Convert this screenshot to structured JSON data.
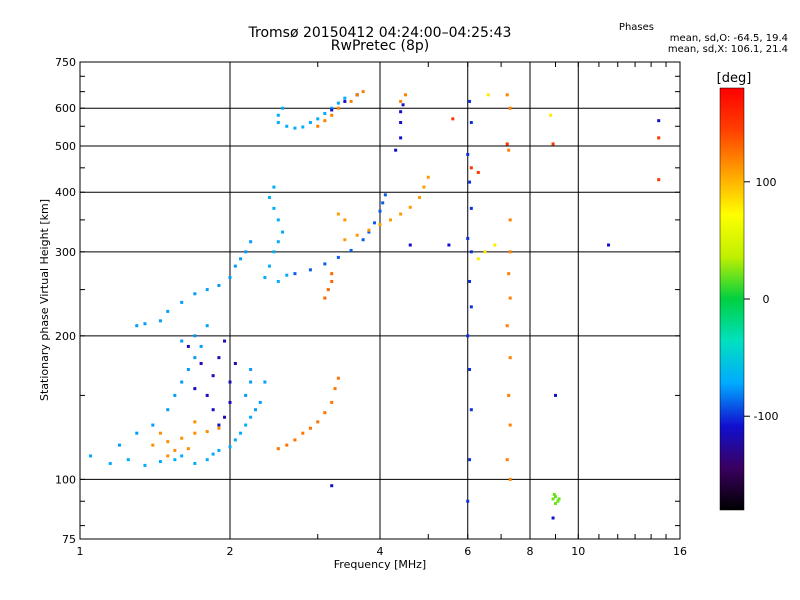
{
  "header": {
    "title_line1": "Tromsø 20150412 04:24:00–04:25:43",
    "title_line2": "RwPretec (8p)",
    "phases_title": "Phases",
    "phases_line1": "mean, sd,O: -64.5, 19.4",
    "phases_line2": "mean, sd,X: 106.1, 21.4"
  },
  "colorbar": {
    "label": "deg",
    "ticks": [
      {
        "v": 100,
        "t": "100"
      },
      {
        "v": 0,
        "t": "0"
      },
      {
        "v": -100,
        "t": "-100"
      }
    ],
    "range": [
      -180,
      180
    ],
    "stops": [
      "#000000",
      "#3a0060",
      "#1010d0",
      "#00aaff",
      "#00e0c0",
      "#00d040",
      "#c0f000",
      "#ffff00",
      "#ffa000",
      "#ff4000",
      "#ff0000"
    ]
  },
  "chart_data": {
    "type": "scatter",
    "title": "Tromsø 20150412 04:24:00–04:25:43 RwPretec (8p)",
    "xlabel": "Frequency [MHz]",
    "ylabel": "Stationary phase Virtual Height [km]",
    "xscale": "log",
    "yscale": "log",
    "xlim": [
      1,
      16
    ],
    "ylim": [
      75,
      750
    ],
    "xticks": [
      {
        "v": 1,
        "t": "1"
      },
      {
        "v": 2,
        "t": "2"
      },
      {
        "v": 4,
        "t": "4"
      },
      {
        "v": 6,
        "t": "6"
      },
      {
        "v": 8,
        "t": "8"
      },
      {
        "v": 10,
        "t": "10"
      },
      {
        "v": 16,
        "t": "16"
      }
    ],
    "yticks": [
      {
        "v": 75,
        "t": "75"
      },
      {
        "v": 100,
        "t": "100"
      },
      {
        "v": 200,
        "t": "200"
      },
      {
        "v": 300,
        "t": "300"
      },
      {
        "v": 400,
        "t": "400"
      },
      {
        "v": 500,
        "t": "500"
      },
      {
        "v": 600,
        "t": "600"
      },
      {
        "v": 750,
        "t": "750"
      }
    ],
    "grid_x": [
      2,
      4,
      6,
      8,
      10
    ],
    "grid_y": [
      100,
      200,
      300,
      400,
      500,
      600
    ],
    "color_by": "phase_deg",
    "point_groups": [
      {
        "name": "E-layer O-mode",
        "phase": -70,
        "points": [
          [
            1.05,
            112
          ],
          [
            1.15,
            108
          ],
          [
            1.25,
            110
          ],
          [
            1.35,
            107
          ],
          [
            1.45,
            109
          ],
          [
            1.55,
            110
          ],
          [
            1.6,
            112
          ],
          [
            1.7,
            108
          ],
          [
            1.8,
            110
          ],
          [
            1.85,
            113
          ],
          [
            1.9,
            115
          ],
          [
            2.0,
            117
          ],
          [
            2.05,
            121
          ],
          [
            2.1,
            125
          ],
          [
            2.15,
            130
          ],
          [
            2.2,
            135
          ]
        ]
      },
      {
        "name": "E-layer scatter cyan",
        "phase": -75,
        "points": [
          [
            1.2,
            118
          ],
          [
            1.3,
            125
          ],
          [
            1.4,
            130
          ],
          [
            1.5,
            140
          ],
          [
            1.55,
            150
          ],
          [
            1.6,
            160
          ],
          [
            1.65,
            170
          ],
          [
            1.7,
            180
          ],
          [
            1.75,
            190
          ],
          [
            1.6,
            195
          ],
          [
            1.7,
            200
          ],
          [
            1.8,
            210
          ],
          [
            1.5,
            225
          ],
          [
            1.45,
            215
          ],
          [
            1.6,
            235
          ],
          [
            1.7,
            245
          ],
          [
            1.8,
            250
          ],
          [
            1.9,
            255
          ],
          [
            2.0,
            265
          ],
          [
            2.05,
            280
          ],
          [
            2.1,
            290
          ],
          [
            2.15,
            300
          ],
          [
            2.2,
            315
          ],
          [
            2.2,
            170
          ],
          [
            2.2,
            160
          ],
          [
            2.15,
            150
          ],
          [
            2.25,
            140
          ],
          [
            2.3,
            145
          ],
          [
            2.35,
            160
          ],
          [
            1.3,
            210
          ],
          [
            1.35,
            212
          ]
        ]
      },
      {
        "name": "E-layer scatter blue",
        "phase": -115,
        "points": [
          [
            1.65,
            190
          ],
          [
            1.75,
            175
          ],
          [
            1.85,
            165
          ],
          [
            1.9,
            180
          ],
          [
            1.95,
            195
          ],
          [
            2.0,
            160
          ],
          [
            1.8,
            150
          ],
          [
            1.85,
            140
          ],
          [
            1.9,
            130
          ],
          [
            1.7,
            155
          ],
          [
            2.0,
            145
          ],
          [
            1.95,
            135
          ],
          [
            2.05,
            175
          ]
        ]
      },
      {
        "name": "E-layer X-mode",
        "phase": 115,
        "points": [
          [
            1.4,
            118
          ],
          [
            1.5,
            120
          ],
          [
            1.6,
            122
          ],
          [
            1.7,
            125
          ],
          [
            1.8,
            126
          ],
          [
            1.9,
            128
          ],
          [
            1.5,
            112
          ],
          [
            1.55,
            115
          ],
          [
            1.65,
            116
          ],
          [
            1.45,
            125
          ],
          [
            1.7,
            132
          ]
        ]
      },
      {
        "name": "Es X-mode trace",
        "phase": 125,
        "points": [
          [
            2.5,
            116
          ],
          [
            2.6,
            118
          ],
          [
            2.7,
            121
          ],
          [
            2.8,
            125
          ],
          [
            2.9,
            128
          ],
          [
            3.0,
            132
          ],
          [
            3.1,
            138
          ],
          [
            3.2,
            145
          ],
          [
            3.25,
            155
          ],
          [
            3.3,
            163
          ]
        ]
      },
      {
        "name": "F2 O-mode trace",
        "phase": -90,
        "points": [
          [
            2.7,
            270
          ],
          [
            2.9,
            275
          ],
          [
            3.1,
            283
          ],
          [
            3.3,
            292
          ],
          [
            3.5,
            302
          ],
          [
            3.7,
            318
          ],
          [
            3.8,
            330
          ],
          [
            3.9,
            345
          ],
          [
            4.0,
            365
          ],
          [
            4.05,
            380
          ],
          [
            4.1,
            395
          ]
        ]
      },
      {
        "name": "F2 low cyan",
        "phase": -70,
        "points": [
          [
            2.4,
            280
          ],
          [
            2.45,
            300
          ],
          [
            2.5,
            315
          ],
          [
            2.55,
            330
          ],
          [
            2.5,
            350
          ],
          [
            2.45,
            370
          ],
          [
            2.4,
            390
          ],
          [
            2.45,
            410
          ],
          [
            2.5,
            260
          ],
          [
            2.6,
            268
          ],
          [
            2.35,
            265
          ]
        ]
      },
      {
        "name": "F2 X-mode trace",
        "phase": 110,
        "points": [
          [
            3.4,
            318
          ],
          [
            3.6,
            325
          ],
          [
            3.8,
            333
          ],
          [
            4.0,
            342
          ],
          [
            4.2,
            350
          ],
          [
            4.4,
            360
          ],
          [
            4.6,
            372
          ],
          [
            4.8,
            390
          ],
          [
            4.9,
            410
          ],
          [
            5.0,
            430
          ],
          [
            3.4,
            350
          ],
          [
            3.3,
            360
          ]
        ]
      },
      {
        "name": "F2 X-mode lower",
        "phase": 130,
        "points": [
          [
            3.1,
            240
          ],
          [
            3.15,
            250
          ],
          [
            3.2,
            260
          ],
          [
            3.2,
            270
          ]
        ]
      },
      {
        "name": "Multi-hop O trace",
        "phase": -70,
        "points": [
          [
            2.5,
            560
          ],
          [
            2.6,
            550
          ],
          [
            2.7,
            545
          ],
          [
            2.8,
            548
          ],
          [
            2.5,
            580
          ],
          [
            2.55,
            600
          ],
          [
            2.9,
            560
          ],
          [
            3.0,
            570
          ],
          [
            3.1,
            585
          ],
          [
            3.2,
            600
          ],
          [
            3.3,
            615
          ],
          [
            3.4,
            630
          ],
          [
            3.6,
            640
          ]
        ]
      },
      {
        "name": "Multi-hop blue",
        "phase": -110,
        "points": [
          [
            3.2,
            595
          ],
          [
            3.4,
            620
          ],
          [
            3.6,
            640
          ],
          [
            4.4,
            560
          ],
          [
            4.4,
            590
          ],
          [
            4.45,
            610
          ],
          [
            4.4,
            520
          ],
          [
            4.3,
            490
          ]
        ]
      },
      {
        "name": "Multi-hop X trace",
        "phase": 120,
        "points": [
          [
            3.0,
            550
          ],
          [
            3.1,
            565
          ],
          [
            3.2,
            580
          ],
          [
            3.3,
            600
          ],
          [
            3.5,
            620
          ],
          [
            3.6,
            640
          ],
          [
            3.7,
            650
          ],
          [
            4.4,
            620
          ],
          [
            4.5,
            640
          ]
        ]
      },
      {
        "name": "Interference 6 MHz",
        "phase": -100,
        "points": [
          [
            6.0,
            90
          ],
          [
            6.05,
            110
          ],
          [
            6.1,
            140
          ],
          [
            6.05,
            170
          ],
          [
            6.0,
            200
          ],
          [
            6.1,
            230
          ],
          [
            6.05,
            260
          ],
          [
            6.1,
            300
          ],
          [
            6.0,
            320
          ],
          [
            6.1,
            370
          ],
          [
            6.05,
            420
          ],
          [
            6.0,
            480
          ],
          [
            6.1,
            560
          ],
          [
            6.05,
            620
          ]
        ]
      },
      {
        "name": "Interference 7 MHz",
        "phase": 120,
        "points": [
          [
            7.3,
            100
          ],
          [
            7.2,
            110
          ],
          [
            7.3,
            130
          ],
          [
            7.25,
            150
          ],
          [
            7.3,
            180
          ],
          [
            7.2,
            210
          ],
          [
            7.3,
            240
          ],
          [
            7.25,
            270
          ],
          [
            7.3,
            300
          ],
          [
            7.3,
            350
          ],
          [
            7.25,
            490
          ],
          [
            7.3,
            600
          ],
          [
            7.2,
            640
          ]
        ]
      },
      {
        "name": "Sporadic yellow",
        "phase": 80,
        "points": [
          [
            6.3,
            290
          ],
          [
            6.5,
            300
          ],
          [
            6.8,
            310
          ],
          [
            8.8,
            580
          ],
          [
            6.6,
            640
          ]
        ]
      },
      {
        "name": "Green cluster 9 MHz",
        "phase": 20,
        "points": [
          [
            8.9,
            91
          ],
          [
            9.0,
            92
          ],
          [
            9.1,
            90
          ],
          [
            9.0,
            89
          ],
          [
            8.95,
            93
          ],
          [
            9.15,
            91
          ]
        ]
      },
      {
        "name": "Sporadic blue",
        "phase": -110,
        "points": [
          [
            4.6,
            310
          ],
          [
            5.5,
            310
          ],
          [
            11.5,
            310
          ],
          [
            14.5,
            565
          ],
          [
            9.0,
            150
          ],
          [
            8.9,
            83
          ],
          [
            3.2,
            97
          ]
        ]
      },
      {
        "name": "Sporadic red",
        "phase": 150,
        "points": [
          [
            14.5,
            520
          ],
          [
            14.5,
            425
          ],
          [
            6.1,
            450
          ],
          [
            5.6,
            570
          ],
          [
            7.2,
            505
          ],
          [
            6.3,
            440
          ],
          [
            8.9,
            505
          ]
        ]
      }
    ]
  }
}
